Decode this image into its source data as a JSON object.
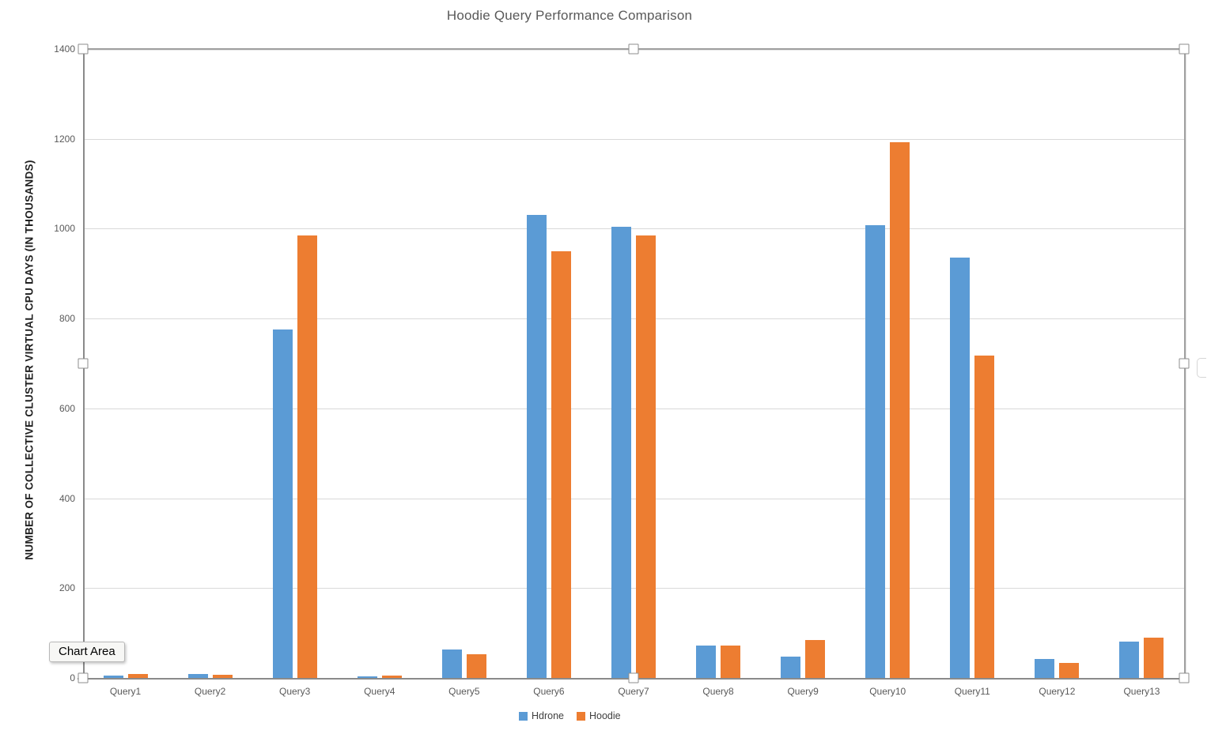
{
  "chart_data": {
    "type": "bar",
    "title": "Hoodie Query Performance Comparison",
    "xlabel": "",
    "ylabel": "NUMBER OF COLLECTIVE CLUSTER VIRTUAL CPU DAYS (IN THOUSANDS)",
    "categories": [
      "Query1",
      "Query2",
      "Query3",
      "Query4",
      "Query5",
      "Query6",
      "Query7",
      "Query8",
      "Query9",
      "Query10",
      "Query11",
      "Query12",
      "Query13"
    ],
    "series": [
      {
        "name": "Hdrone",
        "color": "#5B9BD5",
        "values": [
          5,
          9,
          775,
          4,
          64,
          1030,
          1005,
          72,
          48,
          1008,
          935,
          42,
          81
        ]
      },
      {
        "name": "Hoodie",
        "color": "#ED7D31",
        "values": [
          9,
          8,
          985,
          5,
          53,
          950,
          985,
          73,
          85,
          1193,
          718,
          34,
          90
        ]
      }
    ],
    "ylim": [
      0,
      1400
    ],
    "ytick_step": 200,
    "yticks": [
      0,
      200,
      400,
      600,
      800,
      1000,
      1200,
      1400
    ],
    "grid": true,
    "legend_position": "bottom"
  },
  "tooltip": {
    "label": "Chart Area"
  },
  "colors": {
    "hdrone": "#5B9BD5",
    "hoodie": "#ED7D31",
    "gridline": "#d9d9d9",
    "axis": "#8a8a8a",
    "text": "#595959"
  }
}
